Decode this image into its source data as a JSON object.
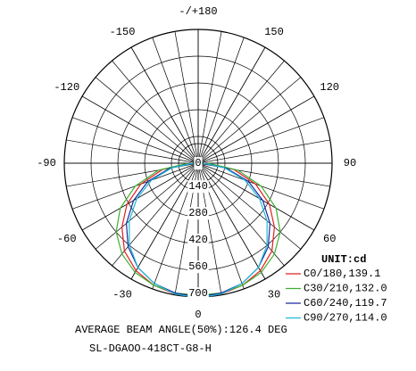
{
  "chart_data": {
    "type": "polar",
    "unit_label": "UNIT:cd",
    "footer": "AVERAGE BEAM ANGLE(50%):126.4 DEG",
    "title": "SL-DGAOO-418CT-G8-H",
    "x": [
      -90,
      -80,
      -70,
      -60,
      -50,
      -40,
      -30,
      -20,
      -10,
      0,
      10,
      20,
      30,
      40,
      50,
      60,
      70,
      80,
      90
    ],
    "angle_ticks": [
      {
        "value": 180,
        "label": "-/+180"
      },
      -150,
      150,
      -120,
      120,
      -90,
      90,
      -60,
      60,
      -30,
      30,
      0
    ],
    "rlim": [
      0,
      700
    ],
    "rticks": [
      0,
      140,
      280,
      420,
      560,
      700
    ],
    "grid": true,
    "series": [
      {
        "name": "C0/180,139.1",
        "color": "#e02020",
        "values": [
          40,
          190,
          320,
          430,
          520,
          600,
          650,
          680,
          695,
          700,
          695,
          680,
          650,
          600,
          520,
          430,
          320,
          190,
          40
        ]
      },
      {
        "name": "C30/210,132.0",
        "color": "#3cb030",
        "values": [
          50,
          210,
          350,
          470,
          560,
          620,
          660,
          680,
          690,
          690,
          690,
          680,
          660,
          620,
          560,
          470,
          350,
          210,
          50
        ]
      },
      {
        "name": "C60/240,119.7",
        "color": "#1a2aa0",
        "values": [
          30,
          150,
          280,
          390,
          490,
          570,
          630,
          670,
          690,
          700,
          690,
          670,
          630,
          570,
          490,
          390,
          280,
          150,
          30
        ]
      },
      {
        "name": "C90/270,114.0",
        "color": "#20b8d8",
        "values": [
          25,
          140,
          260,
          370,
          470,
          560,
          630,
          670,
          695,
          705,
          695,
          670,
          630,
          560,
          470,
          370,
          260,
          140,
          25
        ]
      }
    ]
  }
}
